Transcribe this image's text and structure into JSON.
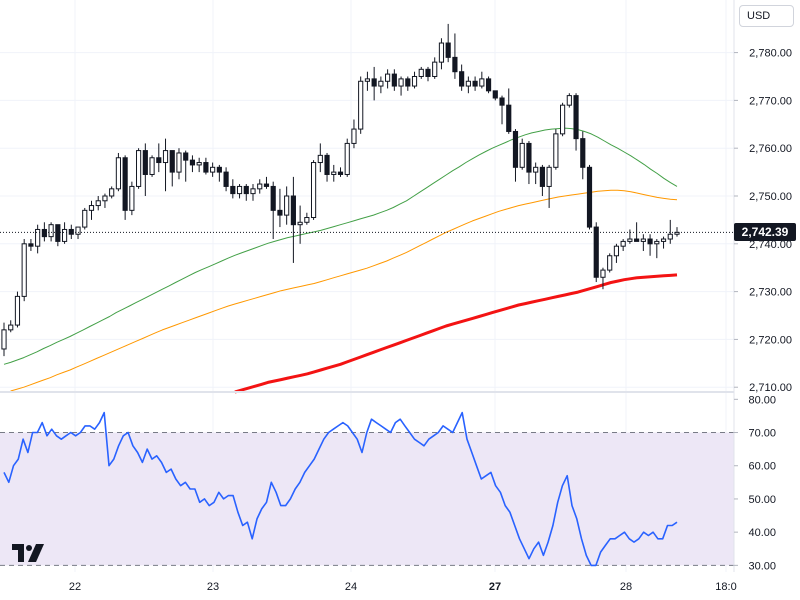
{
  "header": {
    "currency": "USD"
  },
  "last_price_label": "2,742.39",
  "chart_data": [
    {
      "type": "candlestick",
      "x_ticks": [
        "22",
        "23",
        "24",
        "27",
        "28",
        "18:0"
      ],
      "y_ticks": [
        "2,710.00",
        "2,720.00",
        "2,730.00",
        "2,740.00",
        "2,750.00",
        "2,760.00",
        "2,770.00",
        "2,780.00"
      ],
      "ylim": [
        2709,
        2791
      ],
      "last_price": 2742.39,
      "colors": {
        "up": "#131722",
        "down": "#131722",
        "ma_fast": "#43a047",
        "ma_mid": "#ff9800",
        "ma_slow": "#f31313"
      },
      "candles": [
        [
          2718.0,
          2723.5,
          2716.5,
          2722.0
        ],
        [
          2722.0,
          2724.0,
          2721.5,
          2723.0
        ],
        [
          2723.0,
          2730.0,
          2722.5,
          2729.0
        ],
        [
          2729.0,
          2741.0,
          2728.0,
          2740.0
        ],
        [
          2740.0,
          2741.0,
          2738.5,
          2739.5
        ],
        [
          2739.5,
          2744.0,
          2738.0,
          2743.0
        ],
        [
          2743.0,
          2744.5,
          2740.5,
          2741.5
        ],
        [
          2741.5,
          2744.5,
          2740.5,
          2744.0
        ],
        [
          2744.0,
          2743.5,
          2739.5,
          2740.5
        ],
        [
          2740.5,
          2744.5,
          2740.0,
          2743.0
        ],
        [
          2743.0,
          2744.0,
          2741.0,
          2742.0
        ],
        [
          2742.0,
          2743.5,
          2741.0,
          2743.5
        ],
        [
          2743.5,
          2747.5,
          2743.0,
          2747.0
        ],
        [
          2747.0,
          2749.0,
          2745.0,
          2748.0
        ],
        [
          2748.0,
          2750.0,
          2747.0,
          2749.0
        ],
        [
          2749.0,
          2750.5,
          2747.5,
          2750.0
        ],
        [
          2750.0,
          2752.0,
          2749.5,
          2751.5
        ],
        [
          2751.5,
          2759.0,
          2751.0,
          2758.0
        ],
        [
          2758.0,
          2758.5,
          2745.0,
          2747.0
        ],
        [
          2747.0,
          2753.0,
          2746.0,
          2752.0
        ],
        [
          2752.0,
          2760.0,
          2751.5,
          2759.5
        ],
        [
          2759.5,
          2761.0,
          2750.0,
          2754.5
        ],
        [
          2754.5,
          2758.5,
          2754.0,
          2758.0
        ],
        [
          2758.0,
          2761.0,
          2755.0,
          2757.0
        ],
        [
          2757.0,
          2762.0,
          2751.0,
          2759.5
        ],
        [
          2759.5,
          2759.5,
          2752.0,
          2755.0
        ],
        [
          2755.0,
          2760.0,
          2753.5,
          2759.0
        ],
        [
          2759.0,
          2759.5,
          2753.0,
          2757.5
        ],
        [
          2757.5,
          2758.5,
          2755.0,
          2756.5
        ],
        [
          2756.5,
          2758.0,
          2755.0,
          2757.0
        ],
        [
          2757.0,
          2758.0,
          2754.5,
          2755.0
        ],
        [
          2755.0,
          2757.0,
          2754.0,
          2756.0
        ],
        [
          2756.0,
          2756.5,
          2753.0,
          2755.0
        ],
        [
          2755.0,
          2756.0,
          2751.0,
          2752.0
        ],
        [
          2752.0,
          2753.5,
          2749.5,
          2750.5
        ],
        [
          2750.5,
          2752.5,
          2749.5,
          2752.0
        ],
        [
          2752.0,
          2752.5,
          2749.0,
          2750.5
        ],
        [
          2750.5,
          2752.5,
          2749.0,
          2751.5
        ],
        [
          2751.5,
          2753.5,
          2750.5,
          2752.5
        ],
        [
          2752.5,
          2754.0,
          2751.5,
          2752.0
        ],
        [
          2752.0,
          2753.0,
          2741.0,
          2747.0
        ],
        [
          2747.0,
          2751.5,
          2743.5,
          2746.0
        ],
        [
          2746.0,
          2752.0,
          2744.0,
          2750.0
        ],
        [
          2750.0,
          2754.0,
          2736.0,
          2744.0
        ],
        [
          2744.0,
          2748.0,
          2740.0,
          2744.5
        ],
        [
          2744.5,
          2746.5,
          2744.0,
          2745.5
        ],
        [
          2745.5,
          2757.5,
          2745.0,
          2757.0
        ],
        [
          2757.0,
          2761.0,
          2755.0,
          2758.5
        ],
        [
          2758.5,
          2759.0,
          2753.0,
          2754.5
        ],
        [
          2754.5,
          2756.5,
          2753.0,
          2755.0
        ],
        [
          2755.0,
          2756.0,
          2754.0,
          2754.5
        ],
        [
          2754.5,
          2762.0,
          2754.0,
          2761.0
        ],
        [
          2761.0,
          2766.0,
          2760.0,
          2764.0
        ],
        [
          2764.0,
          2775.0,
          2763.0,
          2774.0
        ],
        [
          2774.0,
          2776.0,
          2772.0,
          2774.5
        ],
        [
          2774.5,
          2777.0,
          2770.0,
          2773.0
        ],
        [
          2773.0,
          2775.0,
          2771.5,
          2774.0
        ],
        [
          2774.0,
          2776.5,
          2772.5,
          2775.5
        ],
        [
          2775.5,
          2776.5,
          2772.0,
          2773.0
        ],
        [
          2773.0,
          2775.0,
          2771.0,
          2774.5
        ],
        [
          2774.5,
          2775.0,
          2772.0,
          2773.0
        ],
        [
          2773.0,
          2776.0,
          2772.5,
          2775.0
        ],
        [
          2775.0,
          2777.0,
          2774.5,
          2776.5
        ],
        [
          2776.5,
          2777.0,
          2774.0,
          2775.0
        ],
        [
          2775.0,
          2779.0,
          2774.5,
          2778.0
        ],
        [
          2778.0,
          2783.0,
          2776.5,
          2782.0
        ],
        [
          2782.0,
          2786.0,
          2778.0,
          2779.0
        ],
        [
          2779.0,
          2784.0,
          2774.5,
          2776.0
        ],
        [
          2776.0,
          2777.5,
          2772.0,
          2773.0
        ],
        [
          2773.0,
          2775.0,
          2771.5,
          2774.0
        ],
        [
          2774.0,
          2775.0,
          2772.0,
          2773.0
        ],
        [
          2773.0,
          2776.0,
          2772.5,
          2774.5
        ],
        [
          2774.5,
          2775.0,
          2771.5,
          2772.0
        ],
        [
          2772.0,
          2772.0,
          2770.0,
          2770.5
        ],
        [
          2770.5,
          2771.0,
          2765.0,
          2769.0
        ],
        [
          2769.0,
          2772.5,
          2763.0,
          2763.5
        ],
        [
          2763.5,
          2764.0,
          2753.0,
          2756.0
        ],
        [
          2756.0,
          2762.0,
          2755.5,
          2761.0
        ],
        [
          2761.0,
          2761.5,
          2752.5,
          2755.0
        ],
        [
          2755.0,
          2757.0,
          2752.5,
          2756.0
        ],
        [
          2756.0,
          2756.5,
          2750.0,
          2752.0
        ],
        [
          2752.0,
          2756.5,
          2747.5,
          2756.0
        ],
        [
          2756.0,
          2764.0,
          2755.5,
          2763.0
        ],
        [
          2763.0,
          2769.5,
          2762.5,
          2769.0
        ],
        [
          2769.0,
          2771.5,
          2768.5,
          2771.0
        ],
        [
          2771.0,
          2771.5,
          2759.5,
          2762.0
        ],
        [
          2762.0,
          2763.5,
          2753.5,
          2756.0
        ],
        [
          2756.0,
          2756.5,
          2743.0,
          2743.5
        ],
        [
          2743.5,
          2744.5,
          2732.0,
          2733.0
        ],
        [
          2733.0,
          2735.0,
          2730.5,
          2734.5
        ],
        [
          2734.5,
          2738.0,
          2734.0,
          2737.5
        ],
        [
          2737.5,
          2740.0,
          2736.0,
          2739.5
        ],
        [
          2739.5,
          2741.0,
          2738.5,
          2740.5
        ],
        [
          2740.5,
          2743.0,
          2740.0,
          2741.0
        ],
        [
          2741.0,
          2744.5,
          2740.5,
          2740.5
        ],
        [
          2740.5,
          2742.0,
          2738.5,
          2741.0
        ],
        [
          2741.0,
          2742.0,
          2737.5,
          2740.0
        ],
        [
          2740.0,
          2741.0,
          2737.0,
          2740.5
        ],
        [
          2740.5,
          2741.5,
          2739.0,
          2741.0
        ],
        [
          2741.0,
          2745.0,
          2740.0,
          2742.0
        ],
        [
          2742.0,
          2743.5,
          2741.5,
          2742.39
        ]
      ],
      "ma_fast": [
        2714.8,
        2715.2,
        2715.7,
        2716.2,
        2716.8,
        2717.4,
        2718.1,
        2718.7,
        2719.4,
        2720.0,
        2720.6,
        2721.3,
        2722.0,
        2722.7,
        2723.4,
        2724.1,
        2724.8,
        2725.6,
        2726.3,
        2727.0,
        2727.7,
        2728.4,
        2729.1,
        2729.8,
        2730.5,
        2731.2,
        2731.9,
        2732.6,
        2733.3,
        2734.0,
        2734.6,
        2735.2,
        2735.8,
        2736.4,
        2737.0,
        2737.6,
        2738.1,
        2738.6,
        2739.1,
        2739.6,
        2740.1,
        2740.5,
        2740.9,
        2741.3,
        2741.6,
        2741.9,
        2742.2,
        2742.5,
        2742.8,
        2743.2,
        2743.6,
        2744.0,
        2744.4,
        2744.8,
        2745.2,
        2745.6,
        2746.0,
        2746.5,
        2747.0,
        2747.6,
        2748.3,
        2749.0,
        2749.9,
        2750.8,
        2751.7,
        2752.6,
        2753.5,
        2754.4,
        2755.3,
        2756.1,
        2757.0,
        2757.8,
        2758.6,
        2759.3,
        2760.0,
        2760.6,
        2761.2,
        2761.8,
        2762.3,
        2762.8,
        2763.2,
        2763.5,
        2763.8,
        2764.0,
        2764.1,
        2764.2,
        2764.1,
        2763.9,
        2763.5,
        2763.0,
        2762.3,
        2761.5,
        2760.7,
        2760.0,
        2759.2,
        2758.4,
        2757.5,
        2756.6,
        2755.6,
        2754.7,
        2753.7,
        2752.8,
        2752.0
      ],
      "ma_mid": [
        2708.8,
        2709.2,
        2709.6,
        2710.0,
        2710.5,
        2711.0,
        2711.5,
        2712.0,
        2712.6,
        2713.1,
        2713.6,
        2714.2,
        2714.8,
        2715.4,
        2716.0,
        2716.6,
        2717.2,
        2717.8,
        2718.4,
        2719.0,
        2719.6,
        2720.2,
        2720.8,
        2721.4,
        2722.0,
        2722.5,
        2723.0,
        2723.5,
        2724.0,
        2724.5,
        2725.0,
        2725.5,
        2726.0,
        2726.5,
        2727.0,
        2727.4,
        2727.8,
        2728.2,
        2728.6,
        2729.0,
        2729.4,
        2729.8,
        2730.2,
        2730.5,
        2730.8,
        2731.1,
        2731.4,
        2731.7,
        2732.1,
        2732.5,
        2732.9,
        2733.3,
        2733.7,
        2734.1,
        2734.5,
        2734.9,
        2735.4,
        2735.9,
        2736.4,
        2737.0,
        2737.6,
        2738.2,
        2738.9,
        2739.6,
        2740.3,
        2741.0,
        2741.7,
        2742.4,
        2743.0,
        2743.6,
        2744.2,
        2744.8,
        2745.3,
        2745.8,
        2746.3,
        2746.8,
        2747.2,
        2747.6,
        2748.0,
        2748.3,
        2748.6,
        2748.9,
        2749.2,
        2749.5,
        2749.8,
        2750.0,
        2750.2,
        2750.4,
        2750.6,
        2750.8,
        2751.0,
        2751.1,
        2751.2,
        2751.2,
        2751.1,
        2750.9,
        2750.6,
        2750.3,
        2750.0,
        2749.7,
        2749.5,
        2749.3,
        2749.2
      ],
      "ma_slow": [
        null,
        null,
        null,
        null,
        null,
        null,
        null,
        null,
        null,
        null,
        null,
        null,
        null,
        null,
        null,
        null,
        null,
        null,
        null,
        null,
        null,
        null,
        null,
        null,
        null,
        null,
        null,
        null,
        null,
        null,
        null,
        null,
        null,
        null,
        null,
        2709.0,
        2709.4,
        2709.8,
        2710.2,
        2710.6,
        2711.0,
        2711.3,
        2711.6,
        2711.9,
        2712.2,
        2712.5,
        2712.8,
        2713.2,
        2713.6,
        2714.0,
        2714.4,
        2714.8,
        2715.3,
        2715.8,
        2716.3,
        2716.8,
        2717.3,
        2717.8,
        2718.3,
        2718.8,
        2719.3,
        2719.8,
        2720.3,
        2720.8,
        2721.3,
        2721.8,
        2722.3,
        2722.8,
        2723.2,
        2723.6,
        2724.0,
        2724.4,
        2724.8,
        2725.2,
        2725.6,
        2726.0,
        2726.4,
        2726.8,
        2727.2,
        2727.5,
        2727.8,
        2728.1,
        2728.4,
        2728.7,
        2729.0,
        2729.3,
        2729.6,
        2729.9,
        2730.3,
        2730.7,
        2731.1,
        2731.5,
        2731.9,
        2732.2,
        2732.5,
        2732.7,
        2732.9,
        2733.0,
        2733.1,
        2733.2,
        2733.3,
        2733.4,
        2733.5
      ]
    },
    {
      "type": "line",
      "y_ticks": [
        "30.00",
        "40.00",
        "50.00",
        "60.00",
        "70.00",
        "80.00"
      ],
      "ylim": [
        28,
        81
      ],
      "band": [
        30,
        70
      ],
      "colors": {
        "line": "#2962ff",
        "band": "#ede7f6"
      },
      "values": [
        58,
        55,
        60,
        62,
        68,
        64,
        70,
        70,
        73,
        69,
        71,
        69,
        68,
        69,
        70,
        69,
        70,
        72,
        72,
        71,
        73,
        76,
        60,
        62,
        66,
        69,
        70,
        66,
        64,
        61,
        65,
        62,
        63,
        61,
        58,
        59,
        56,
        54,
        55,
        53,
        53,
        49,
        50,
        48,
        49,
        52,
        50,
        51,
        51,
        46,
        42,
        43,
        38,
        44,
        47,
        49,
        55,
        52,
        48,
        48,
        50,
        53,
        55,
        58,
        60,
        62,
        65,
        68,
        70,
        71,
        72,
        73,
        72,
        70,
        68,
        64,
        70,
        74,
        73,
        72,
        71,
        70,
        73,
        74,
        72,
        70,
        68,
        67,
        66,
        68,
        69,
        70,
        72,
        71,
        70,
        73,
        76,
        68,
        64,
        60,
        56,
        57,
        58,
        54,
        52,
        48,
        46,
        42,
        38,
        35,
        32,
        35,
        37,
        33,
        37,
        42,
        49,
        54,
        57,
        48,
        44,
        38,
        33,
        30,
        30,
        34,
        36,
        38,
        38,
        39,
        40,
        38,
        37,
        38,
        40,
        39,
        40,
        38,
        38,
        42,
        42,
        43
      ]
    }
  ]
}
